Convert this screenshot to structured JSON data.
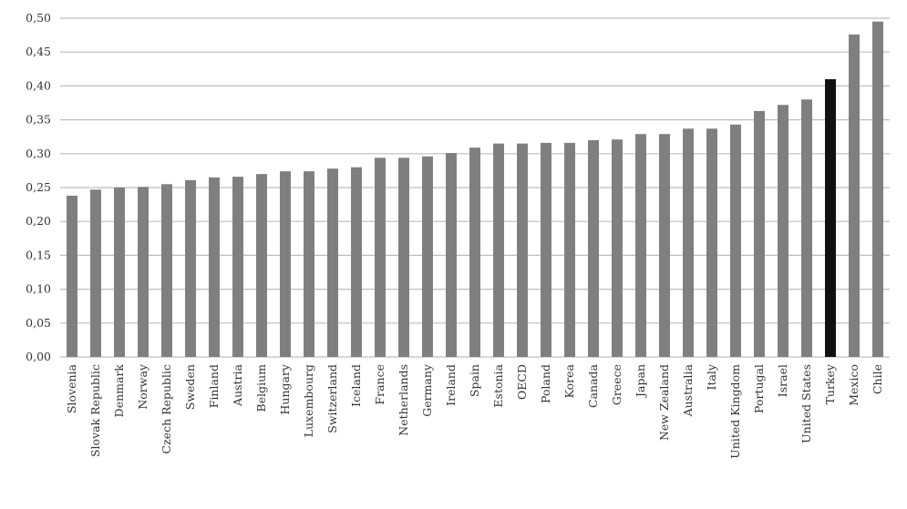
{
  "chart_data": {
    "type": "bar",
    "categories": [
      "Slovenia",
      "Slovak Republic",
      "Denmark",
      "Norway",
      "Czech Republic",
      "Sweden",
      "Finland",
      "Austria",
      "Belgium",
      "Hungary",
      "Luxembourg",
      "Switzerland",
      "Iceland",
      "France",
      "Netherlands",
      "Germany",
      "Ireland",
      "Spain",
      "Estonia",
      "OECD",
      "Poland",
      "Korea",
      "Canada",
      "Greece",
      "Japan",
      "New Zealand",
      "Australia",
      "Italy",
      "United Kingdom",
      "Portugal",
      "Israel",
      "United States",
      "Turkey",
      "Mexico",
      "Chile"
    ],
    "values": [
      0.238,
      0.247,
      0.25,
      0.251,
      0.255,
      0.261,
      0.265,
      0.266,
      0.27,
      0.274,
      0.274,
      0.278,
      0.28,
      0.294,
      0.294,
      0.296,
      0.301,
      0.309,
      0.315,
      0.315,
      0.316,
      0.316,
      0.32,
      0.321,
      0.329,
      0.329,
      0.337,
      0.337,
      0.343,
      0.363,
      0.372,
      0.38,
      0.41,
      0.476,
      0.495
    ],
    "colors": [
      "#7f7f7f",
      "#7f7f7f",
      "#7f7f7f",
      "#7f7f7f",
      "#7f7f7f",
      "#7f7f7f",
      "#7f7f7f",
      "#7f7f7f",
      "#7f7f7f",
      "#7f7f7f",
      "#7f7f7f",
      "#7f7f7f",
      "#7f7f7f",
      "#7f7f7f",
      "#7f7f7f",
      "#7f7f7f",
      "#7f7f7f",
      "#7f7f7f",
      "#7f7f7f",
      "#7f7f7f",
      "#7f7f7f",
      "#7f7f7f",
      "#7f7f7f",
      "#7f7f7f",
      "#7f7f7f",
      "#7f7f7f",
      "#7f7f7f",
      "#7f7f7f",
      "#7f7f7f",
      "#7f7f7f",
      "#7f7f7f",
      "#7f7f7f",
      "#111111",
      "#7f7f7f",
      "#7f7f7f"
    ],
    "ylim": [
      0,
      0.5
    ],
    "yticks": [
      {
        "value": 0,
        "label": "0,00"
      },
      {
        "value": 0.05,
        "label": "0,05"
      },
      {
        "value": 0.1,
        "label": "0,10"
      },
      {
        "value": 0.15,
        "label": "0,15"
      },
      {
        "value": 0.2,
        "label": "0,20"
      },
      {
        "value": 0.25,
        "label": "0,25"
      },
      {
        "value": 0.3,
        "label": "0,30"
      },
      {
        "value": 0.35,
        "label": "0,35"
      },
      {
        "value": 0.4,
        "label": "0,40"
      },
      {
        "value": 0.45,
        "label": "0,45"
      },
      {
        "value": 0.5,
        "label": "0,50"
      }
    ],
    "grid": true
  }
}
